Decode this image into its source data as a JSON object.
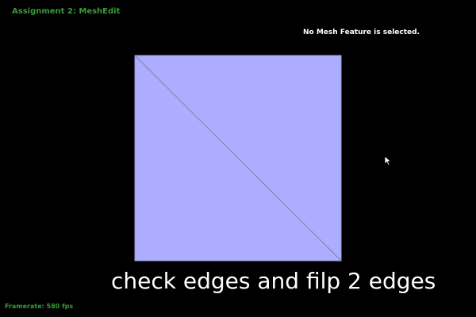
{
  "app": {
    "title": "Assignment 2: MeshEdit"
  },
  "status": {
    "selection_text": "No Mesh Feature is selected."
  },
  "caption": {
    "text": "check edges and filp 2 edges"
  },
  "footer": {
    "framerate": "Framerate: 580 fps"
  },
  "colors": {
    "background": "#000000",
    "face_fill": "#adadff",
    "edge_stroke": "#7f7fa8",
    "title_green": "#3a9a3a"
  },
  "icons": {
    "cursor": "mouse-pointer-icon"
  }
}
